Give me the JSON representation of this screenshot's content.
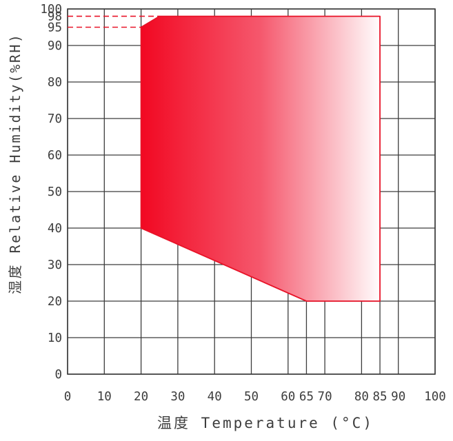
{
  "chart_data": {
    "type": "area",
    "title": "",
    "xlabel": "温度 Temperature (°C)",
    "ylabel": "湿度 Relative Humidity(%RH)",
    "xlim": [
      0,
      100
    ],
    "ylim": [
      0,
      100
    ],
    "grid": true,
    "legend": null,
    "x_tick_labels": [
      0,
      10,
      20,
      30,
      40,
      50,
      60,
      65,
      70,
      80,
      85,
      90,
      100
    ],
    "y_tick_labels": [
      0,
      10,
      20,
      30,
      40,
      50,
      60,
      70,
      80,
      90,
      95,
      98,
      100
    ],
    "x_gridlines_full": [
      0,
      10,
      20,
      30,
      40,
      50,
      60,
      70,
      80,
      90,
      100
    ],
    "x_gridlines_partial": [
      {
        "x": 65,
        "y_from": 0,
        "y_to": 20
      },
      {
        "x": 85,
        "y_from": 0,
        "y_to": 20
      }
    ],
    "y_gridlines": [
      0,
      10,
      20,
      30,
      40,
      50,
      60,
      70,
      80,
      90,
      100
    ],
    "series": [
      {
        "name": "operating-envelope",
        "type": "polygon",
        "points": [
          [
            20,
            95
          ],
          [
            25,
            98
          ],
          [
            85,
            98
          ],
          [
            85,
            20
          ],
          [
            65,
            20
          ],
          [
            20,
            40
          ]
        ]
      }
    ],
    "guides": [
      {
        "name": "guide-98",
        "y": 98,
        "x_from": 0,
        "x_to": 25,
        "style": "dashed"
      },
      {
        "name": "guide-95",
        "y": 95,
        "x_from": 0,
        "x_to": 20,
        "style": "dashed"
      }
    ],
    "colors": {
      "grid": "#3c3c3c",
      "border": "#383838",
      "tick_text": "#3d3d3d",
      "envelope_outline": "#e81328",
      "envelope_fill_left": "#f20822",
      "envelope_fill_mid": "#f5586d",
      "envelope_fill_right": "#fffdfd",
      "guide_dashed": "#e81328"
    }
  }
}
